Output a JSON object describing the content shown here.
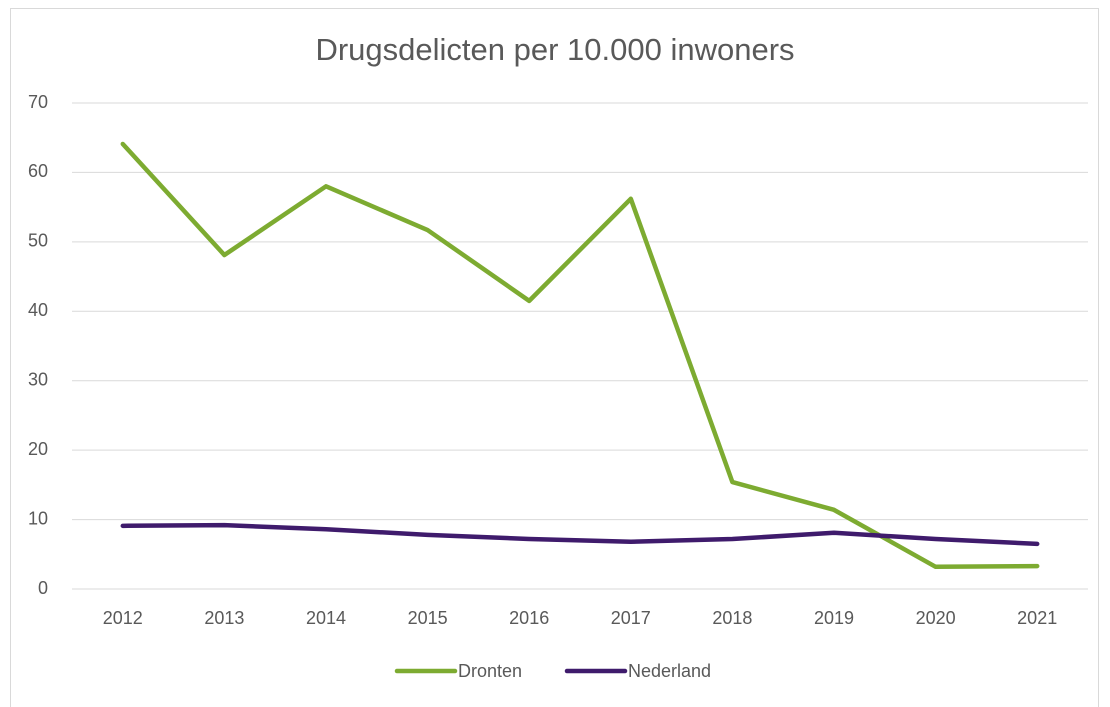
{
  "chart_data": {
    "type": "line",
    "title": "Drugsdelicten per 10.000 inwoners",
    "categories": [
      "2012",
      "2013",
      "2014",
      "2015",
      "2016",
      "2017",
      "2018",
      "2019",
      "2020",
      "2021"
    ],
    "series": [
      {
        "name": "Dronten",
        "color": "#7dab31",
        "values": [
          64.1,
          48.1,
          58.0,
          51.7,
          41.5,
          56.2,
          15.4,
          11.4,
          3.2,
          3.3
        ]
      },
      {
        "name": "Nederland",
        "color": "#3f1b6c",
        "values": [
          9.1,
          9.2,
          8.6,
          7.8,
          7.2,
          6.8,
          7.2,
          8.1,
          7.2,
          6.5
        ]
      }
    ],
    "ylim": [
      0,
      70
    ],
    "yticks": [
      0,
      10,
      20,
      30,
      40,
      50,
      60,
      70
    ],
    "grid": true,
    "legend": "bottom"
  }
}
